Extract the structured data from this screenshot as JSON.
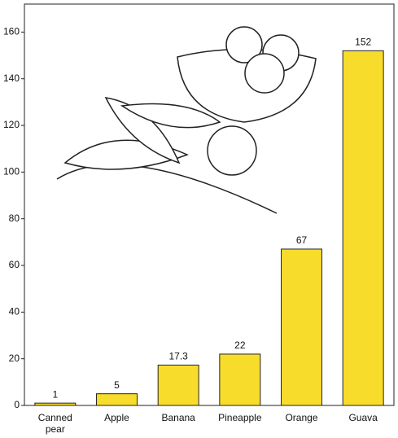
{
  "chart_data": {
    "type": "bar",
    "categories": [
      "Canned pear",
      "Apple",
      "Banana",
      "Pineapple",
      "Orange",
      "Guava"
    ],
    "values": [
      1,
      5,
      17.3,
      22,
      67,
      152
    ],
    "color": "#f8dc2b",
    "ylim": [
      0,
      172
    ],
    "yticks": [
      0,
      20,
      40,
      60,
      80,
      100,
      120,
      140,
      160
    ]
  }
}
